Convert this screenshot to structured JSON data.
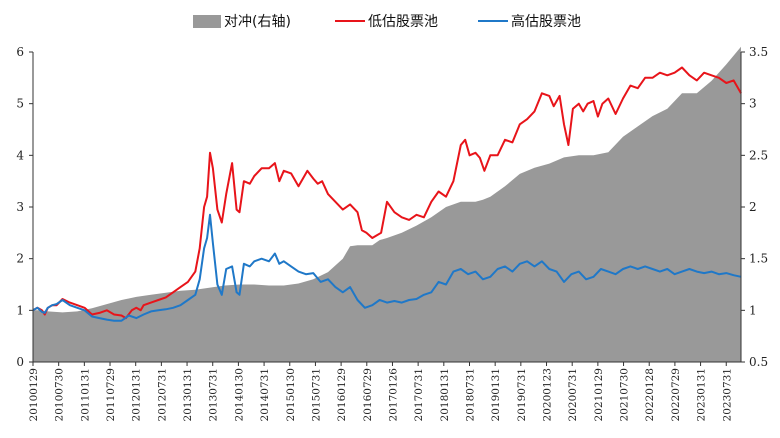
{
  "chart_data": {
    "type": "line",
    "legend": {
      "placement": "top-center",
      "entries": [
        {
          "label": "对冲(右轴)",
          "kind": "area",
          "color": "#999999"
        },
        {
          "label": "低估股票池",
          "kind": "line",
          "color": "#e8141a"
        },
        {
          "label": "高估股票池",
          "kind": "line",
          "color": "#1f78c8"
        }
      ]
    },
    "ylim_left": [
      0,
      6
    ],
    "yticks_left": [
      "0",
      "1",
      "2",
      "3",
      "4",
      "5",
      "6"
    ],
    "ylim_right": [
      0.5,
      3.5
    ],
    "yticks_right": [
      "0.5",
      "1",
      "1.5",
      "2",
      "2.5",
      "3",
      "3.5"
    ],
    "x_tick_labels": [
      "20100129",
      "20100730",
      "20110131",
      "20110729",
      "20120131",
      "20120731",
      "20130131",
      "20130731",
      "20140130",
      "20140731",
      "20150130",
      "20150731",
      "20160129",
      "20160729",
      "20170126",
      "20170731",
      "20180131",
      "20180731",
      "20190131",
      "20190731",
      "20200123",
      "20200731",
      "20210129",
      "20210730",
      "20220128",
      "20220729",
      "20230131",
      "20230731"
    ],
    "grid": false,
    "series": [
      {
        "name": "对冲(右轴)",
        "axis": "right",
        "color": "#999999",
        "points": [
          [
            0,
            1.0
          ],
          [
            0.5,
            1.0
          ],
          [
            1,
            0.99
          ],
          [
            2,
            0.98
          ],
          [
            3,
            0.99
          ],
          [
            4,
            1.02
          ],
          [
            5,
            1.06
          ],
          [
            6,
            1.1
          ],
          [
            7,
            1.13
          ],
          [
            8,
            1.15
          ],
          [
            9,
            1.17
          ],
          [
            10,
            1.19
          ],
          [
            11,
            1.2
          ],
          [
            12,
            1.22
          ],
          [
            13,
            1.24
          ],
          [
            14,
            1.25
          ],
          [
            15,
            1.25
          ],
          [
            16,
            1.24
          ],
          [
            17,
            1.24
          ],
          [
            18,
            1.26
          ],
          [
            19,
            1.3
          ],
          [
            20,
            1.37
          ],
          [
            21,
            1.5
          ],
          [
            21.5,
            1.62
          ],
          [
            22,
            1.63
          ],
          [
            23,
            1.63
          ],
          [
            23.5,
            1.68
          ],
          [
            24,
            1.7
          ],
          [
            25,
            1.75
          ],
          [
            26,
            1.82
          ],
          [
            27,
            1.9
          ],
          [
            28,
            2.0
          ],
          [
            29,
            2.05
          ],
          [
            30,
            2.05
          ],
          [
            30.5,
            2.07
          ],
          [
            31,
            2.1
          ],
          [
            32,
            2.2
          ],
          [
            33,
            2.32
          ],
          [
            34,
            2.38
          ],
          [
            35,
            2.42
          ],
          [
            36,
            2.48
          ],
          [
            37,
            2.5
          ],
          [
            38,
            2.5
          ],
          [
            39,
            2.53
          ],
          [
            40,
            2.68
          ],
          [
            41,
            2.78
          ],
          [
            42,
            2.88
          ],
          [
            43,
            2.95
          ],
          [
            44,
            3.1
          ],
          [
            45,
            3.1
          ],
          [
            46,
            3.22
          ],
          [
            47,
            3.38
          ],
          [
            48,
            3.55
          ]
        ]
      },
      {
        "name": "低估股票池",
        "axis": "left",
        "color": "#e8141a",
        "points": [
          [
            0,
            1.0
          ],
          [
            0.3,
            1.05
          ],
          [
            0.6,
            1.0
          ],
          [
            0.8,
            0.92
          ],
          [
            1.0,
            1.05
          ],
          [
            1.3,
            1.1
          ],
          [
            1.6,
            1.1
          ],
          [
            2.0,
            1.22
          ],
          [
            2.5,
            1.15
          ],
          [
            3.0,
            1.1
          ],
          [
            3.5,
            1.05
          ],
          [
            4.0,
            0.92
          ],
          [
            4.5,
            0.95
          ],
          [
            5.0,
            1.0
          ],
          [
            5.5,
            0.92
          ],
          [
            6.0,
            0.9
          ],
          [
            6.3,
            0.85
          ],
          [
            6.7,
            1.0
          ],
          [
            7.0,
            1.05
          ],
          [
            7.3,
            1.0
          ],
          [
            7.5,
            1.1
          ],
          [
            8.0,
            1.15
          ],
          [
            8.5,
            1.2
          ],
          [
            9.0,
            1.25
          ],
          [
            9.5,
            1.35
          ],
          [
            10.0,
            1.45
          ],
          [
            10.5,
            1.55
          ],
          [
            11.0,
            1.75
          ],
          [
            11.3,
            2.2
          ],
          [
            11.6,
            3.0
          ],
          [
            11.8,
            3.2
          ],
          [
            12.0,
            4.05
          ],
          [
            12.2,
            3.75
          ],
          [
            12.5,
            2.95
          ],
          [
            12.8,
            2.7
          ],
          [
            13.1,
            3.25
          ],
          [
            13.5,
            3.85
          ],
          [
            13.8,
            2.95
          ],
          [
            14.0,
            2.9
          ],
          [
            14.3,
            3.5
          ],
          [
            14.7,
            3.45
          ],
          [
            15.0,
            3.6
          ],
          [
            15.5,
            3.75
          ],
          [
            16.0,
            3.75
          ],
          [
            16.4,
            3.85
          ],
          [
            16.7,
            3.5
          ],
          [
            17.0,
            3.7
          ],
          [
            17.5,
            3.65
          ],
          [
            18.0,
            3.4
          ],
          [
            18.3,
            3.55
          ],
          [
            18.6,
            3.7
          ],
          [
            19.0,
            3.55
          ],
          [
            19.3,
            3.45
          ],
          [
            19.6,
            3.5
          ],
          [
            20.0,
            3.25
          ],
          [
            20.5,
            3.1
          ],
          [
            21.0,
            2.95
          ],
          [
            21.5,
            3.05
          ],
          [
            22.0,
            2.9
          ],
          [
            22.3,
            2.55
          ],
          [
            22.6,
            2.5
          ],
          [
            23.0,
            2.4
          ],
          [
            23.3,
            2.45
          ],
          [
            23.6,
            2.5
          ],
          [
            24.0,
            3.1
          ],
          [
            24.5,
            2.9
          ],
          [
            25.0,
            2.8
          ],
          [
            25.5,
            2.75
          ],
          [
            26.0,
            2.85
          ],
          [
            26.5,
            2.8
          ],
          [
            27.0,
            3.1
          ],
          [
            27.5,
            3.3
          ],
          [
            28.0,
            3.2
          ],
          [
            28.5,
            3.5
          ],
          [
            29.0,
            4.2
          ],
          [
            29.3,
            4.3
          ],
          [
            29.6,
            4.0
          ],
          [
            30.0,
            4.05
          ],
          [
            30.3,
            3.95
          ],
          [
            30.6,
            3.7
          ],
          [
            31.0,
            4.0
          ],
          [
            31.5,
            4.0
          ],
          [
            32.0,
            4.3
          ],
          [
            32.5,
            4.25
          ],
          [
            33.0,
            4.6
          ],
          [
            33.5,
            4.7
          ],
          [
            34.0,
            4.85
          ],
          [
            34.5,
            5.2
          ],
          [
            35.0,
            5.15
          ],
          [
            35.3,
            4.95
          ],
          [
            35.7,
            5.15
          ],
          [
            36.0,
            4.6
          ],
          [
            36.3,
            4.2
          ],
          [
            36.6,
            4.9
          ],
          [
            37.0,
            5.0
          ],
          [
            37.3,
            4.85
          ],
          [
            37.6,
            5.0
          ],
          [
            38.0,
            5.05
          ],
          [
            38.3,
            4.75
          ],
          [
            38.6,
            5.0
          ],
          [
            39.0,
            5.1
          ],
          [
            39.5,
            4.8
          ],
          [
            40.0,
            5.1
          ],
          [
            40.5,
            5.35
          ],
          [
            41.0,
            5.3
          ],
          [
            41.5,
            5.5
          ],
          [
            42.0,
            5.5
          ],
          [
            42.5,
            5.6
          ],
          [
            43.0,
            5.55
          ],
          [
            43.5,
            5.6
          ],
          [
            44.0,
            5.7
          ],
          [
            44.5,
            5.55
          ],
          [
            45.0,
            5.45
          ],
          [
            45.5,
            5.6
          ],
          [
            46.0,
            5.55
          ],
          [
            46.5,
            5.5
          ],
          [
            47.0,
            5.4
          ],
          [
            47.5,
            5.45
          ],
          [
            48.0,
            5.2
          ]
        ]
      },
      {
        "name": "高估股票池",
        "axis": "left",
        "color": "#1f78c8",
        "points": [
          [
            0,
            1.0
          ],
          [
            0.3,
            1.05
          ],
          [
            0.6,
            0.97
          ],
          [
            0.8,
            0.95
          ],
          [
            1.0,
            1.05
          ],
          [
            1.3,
            1.1
          ],
          [
            1.6,
            1.12
          ],
          [
            2.0,
            1.2
          ],
          [
            2.5,
            1.1
          ],
          [
            3.0,
            1.05
          ],
          [
            3.5,
            1.0
          ],
          [
            4.0,
            0.88
          ],
          [
            4.5,
            0.85
          ],
          [
            5.0,
            0.82
          ],
          [
            5.5,
            0.8
          ],
          [
            6.0,
            0.8
          ],
          [
            6.5,
            0.9
          ],
          [
            7.0,
            0.85
          ],
          [
            7.5,
            0.92
          ],
          [
            8.0,
            0.98
          ],
          [
            8.5,
            1.0
          ],
          [
            9.0,
            1.02
          ],
          [
            9.5,
            1.05
          ],
          [
            10.0,
            1.1
          ],
          [
            10.5,
            1.2
          ],
          [
            11.0,
            1.3
          ],
          [
            11.3,
            1.6
          ],
          [
            11.6,
            2.2
          ],
          [
            11.8,
            2.4
          ],
          [
            12.0,
            2.85
          ],
          [
            12.2,
            2.3
          ],
          [
            12.5,
            1.5
          ],
          [
            12.8,
            1.3
          ],
          [
            13.1,
            1.8
          ],
          [
            13.5,
            1.85
          ],
          [
            13.8,
            1.35
          ],
          [
            14.0,
            1.3
          ],
          [
            14.3,
            1.9
          ],
          [
            14.7,
            1.85
          ],
          [
            15.0,
            1.95
          ],
          [
            15.5,
            2.0
          ],
          [
            16.0,
            1.95
          ],
          [
            16.4,
            2.1
          ],
          [
            16.7,
            1.9
          ],
          [
            17.0,
            1.95
          ],
          [
            17.5,
            1.85
          ],
          [
            18.0,
            1.75
          ],
          [
            18.5,
            1.7
          ],
          [
            19.0,
            1.72
          ],
          [
            19.5,
            1.55
          ],
          [
            20.0,
            1.6
          ],
          [
            20.5,
            1.45
          ],
          [
            21.0,
            1.35
          ],
          [
            21.5,
            1.45
          ],
          [
            22.0,
            1.2
          ],
          [
            22.5,
            1.05
          ],
          [
            23.0,
            1.1
          ],
          [
            23.5,
            1.2
          ],
          [
            24.0,
            1.15
          ],
          [
            24.5,
            1.18
          ],
          [
            25.0,
            1.15
          ],
          [
            25.5,
            1.2
          ],
          [
            26.0,
            1.22
          ],
          [
            26.5,
            1.3
          ],
          [
            27.0,
            1.35
          ],
          [
            27.5,
            1.55
          ],
          [
            28.0,
            1.5
          ],
          [
            28.5,
            1.75
          ],
          [
            29.0,
            1.8
          ],
          [
            29.5,
            1.7
          ],
          [
            30.0,
            1.75
          ],
          [
            30.5,
            1.6
          ],
          [
            31.0,
            1.65
          ],
          [
            31.5,
            1.8
          ],
          [
            32.0,
            1.85
          ],
          [
            32.5,
            1.75
          ],
          [
            33.0,
            1.9
          ],
          [
            33.5,
            1.95
          ],
          [
            34.0,
            1.85
          ],
          [
            34.5,
            1.95
          ],
          [
            35.0,
            1.8
          ],
          [
            35.5,
            1.75
          ],
          [
            36.0,
            1.55
          ],
          [
            36.5,
            1.7
          ],
          [
            37.0,
            1.75
          ],
          [
            37.5,
            1.6
          ],
          [
            38.0,
            1.65
          ],
          [
            38.5,
            1.8
          ],
          [
            39.0,
            1.75
          ],
          [
            39.5,
            1.7
          ],
          [
            40.0,
            1.8
          ],
          [
            40.5,
            1.85
          ],
          [
            41.0,
            1.8
          ],
          [
            41.5,
            1.85
          ],
          [
            42.0,
            1.8
          ],
          [
            42.5,
            1.75
          ],
          [
            43.0,
            1.8
          ],
          [
            43.5,
            1.7
          ],
          [
            44.0,
            1.75
          ],
          [
            44.5,
            1.8
          ],
          [
            45.0,
            1.75
          ],
          [
            45.5,
            1.72
          ],
          [
            46.0,
            1.75
          ],
          [
            46.5,
            1.7
          ],
          [
            47.0,
            1.72
          ],
          [
            47.5,
            1.68
          ],
          [
            48.0,
            1.65
          ]
        ]
      }
    ]
  }
}
